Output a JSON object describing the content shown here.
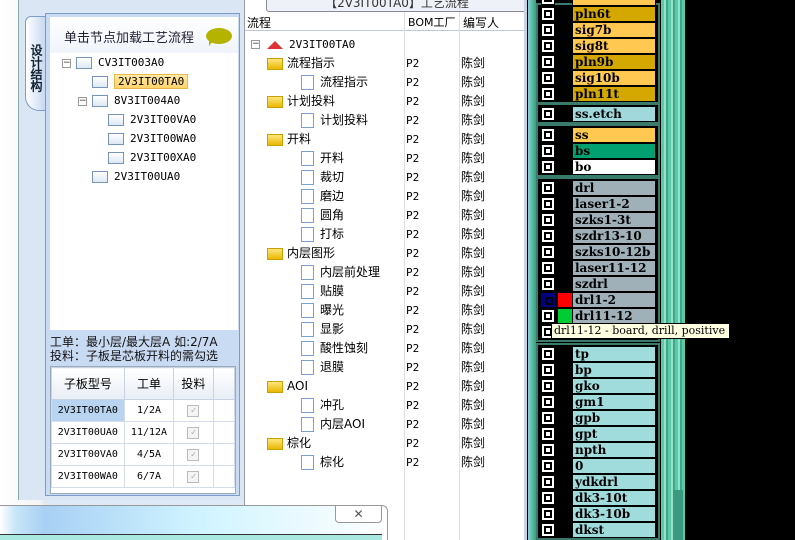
{
  "left_panel": {
    "vertical_tab": "设计结构",
    "header": "单击节点加载工艺流程",
    "tree": [
      {
        "label": "CV3IT003A0",
        "level": 0,
        "expanded": true
      },
      {
        "label": "2V3IT00TA0",
        "level": 1,
        "selected": true
      },
      {
        "label": "8V3IT004A0",
        "level": 1,
        "expanded": true
      },
      {
        "label": "2V3IT00VA0",
        "level": 2
      },
      {
        "label": "2V3IT00WA0",
        "level": 2
      },
      {
        "label": "2V3IT00XA0",
        "level": 2
      },
      {
        "label": "2V3IT00UA0",
        "level": 1
      }
    ],
    "info_line1": "工单：最小层/最大层A 如:2/7A",
    "info_line2": "投料：子板是芯板开料的需勾选",
    "grid": {
      "headers": [
        "子板型号",
        "工单",
        "投料"
      ],
      "rows": [
        {
          "model": "2V3IT00TA0",
          "order": "1/2A",
          "feed": true
        },
        {
          "model": "2V3IT00UA0",
          "order": "11/12A",
          "feed": true
        },
        {
          "model": "2V3IT00VA0",
          "order": "4/5A",
          "feed": true
        },
        {
          "model": "2V3IT00WA0",
          "order": "6/7A",
          "feed": true
        }
      ]
    }
  },
  "process_panel": {
    "title": "【2V3IT00TA0】工艺流程",
    "columns": [
      "流程",
      "BOM工厂",
      "编写人"
    ],
    "root": "2V3IT00TA0",
    "rows": [
      {
        "name": "流程指示",
        "type": "folder",
        "factory": "P2",
        "author": "陈剑"
      },
      {
        "name": "流程指示",
        "type": "step",
        "factory": "P2",
        "author": "陈剑"
      },
      {
        "name": "计划投料",
        "type": "folder",
        "factory": "P2",
        "author": "陈剑"
      },
      {
        "name": "计划投料",
        "type": "step",
        "factory": "P2",
        "author": "陈剑"
      },
      {
        "name": "开料",
        "type": "folder",
        "factory": "P2",
        "author": "陈剑"
      },
      {
        "name": "开料",
        "type": "step",
        "factory": "P2",
        "author": "陈剑"
      },
      {
        "name": "裁切",
        "type": "step",
        "factory": "P2",
        "author": "陈剑"
      },
      {
        "name": "磨边",
        "type": "step",
        "factory": "P2",
        "author": "陈剑"
      },
      {
        "name": "圆角",
        "type": "step",
        "factory": "P2",
        "author": "陈剑"
      },
      {
        "name": "打标",
        "type": "step",
        "factory": "P2",
        "author": "陈剑"
      },
      {
        "name": "内层图形",
        "type": "folder",
        "factory": "P2",
        "author": "陈剑"
      },
      {
        "name": "内层前处理",
        "type": "step",
        "factory": "P2",
        "author": "陈剑"
      },
      {
        "name": "贴膜",
        "type": "step",
        "factory": "P2",
        "author": "陈剑"
      },
      {
        "name": "曝光",
        "type": "step",
        "factory": "P2",
        "author": "陈剑"
      },
      {
        "name": "显影",
        "type": "step",
        "factory": "P2",
        "author": "陈剑"
      },
      {
        "name": "酸性蚀刻",
        "type": "step",
        "factory": "P2",
        "author": "陈剑"
      },
      {
        "name": "退膜",
        "type": "step",
        "factory": "P2",
        "author": "陈剑"
      },
      {
        "name": "AOI",
        "type": "folder",
        "factory": "P2",
        "author": "陈剑"
      },
      {
        "name": "冲孔",
        "type": "step",
        "factory": "P2",
        "author": "陈剑"
      },
      {
        "name": "内层AOI",
        "type": "step",
        "factory": "P2",
        "author": "陈剑"
      },
      {
        "name": "棕化",
        "type": "folder",
        "factory": "P2",
        "author": "陈剑"
      },
      {
        "name": "棕化",
        "type": "step",
        "factory": "P2",
        "author": "陈剑"
      }
    ]
  },
  "layers_panel": {
    "colors": {
      "signal": "#ffc850",
      "plane": "#d4a800",
      "etch": "#a0d8dc",
      "solder_mask": "#00a070",
      "white": "#ffffff",
      "drill": "#9fb0b8",
      "other": "#a0dcdc"
    },
    "groups": [
      [
        {
          "name": "pln6t",
          "color": "#d4a800"
        },
        {
          "name": "sig7b",
          "color": "#ffc850"
        },
        {
          "name": "sig8t",
          "color": "#ffc850"
        },
        {
          "name": "pln9b",
          "color": "#d4a800"
        },
        {
          "name": "sig10b",
          "color": "#ffc850"
        },
        {
          "name": "pln11t",
          "color": "#d4a800"
        }
      ],
      [
        {
          "name": "ss.etch",
          "color": "#a0d8dc"
        }
      ],
      [
        {
          "name": "ss",
          "color": "#ffc850"
        },
        {
          "name": "bs",
          "color": "#00a070"
        },
        {
          "name": "bo",
          "color": "#ffffff"
        }
      ],
      [
        {
          "name": "drl",
          "color": "#9fb0b8"
        },
        {
          "name": "laser1-2",
          "color": "#9fb0b8"
        },
        {
          "name": "szks1-3t",
          "color": "#9fb0b8"
        },
        {
          "name": "szdr13-10",
          "color": "#9fb0b8"
        },
        {
          "name": "szks10-12b",
          "color": "#9fb0b8"
        },
        {
          "name": "laser11-12",
          "color": "#9fb0b8"
        },
        {
          "name": "szdrl",
          "color": "#9fb0b8"
        },
        {
          "name": "drl1-2",
          "color": "#9fb0b8",
          "active": true,
          "swatch": "#ff0000"
        },
        {
          "name": "drl11-12",
          "color": "#9fb0b8",
          "swatch": "#00cc33"
        },
        {
          "name": "",
          "color": "#9fb0b8"
        }
      ],
      [
        {
          "name": "tp",
          "color": "#a0dcdc"
        },
        {
          "name": "bp",
          "color": "#a0dcdc"
        },
        {
          "name": "gko",
          "color": "#a0dcdc"
        },
        {
          "name": "gm1",
          "color": "#a0dcdc"
        },
        {
          "name": "gpb",
          "color": "#a0dcdc"
        },
        {
          "name": "gpt",
          "color": "#a0dcdc"
        },
        {
          "name": "npth",
          "color": "#a0dcdc"
        },
        {
          "name": "0",
          "color": "#a0dcdc"
        },
        {
          "name": "ydkdrl",
          "color": "#a0dcdc"
        },
        {
          "name": "dk3-10t",
          "color": "#a0dcdc"
        },
        {
          "name": "dk3-10b",
          "color": "#a0dcdc"
        },
        {
          "name": "dkst",
          "color": "#a0dcdc"
        }
      ]
    ],
    "tooltip": "drl11-12 - board, drill, positive"
  },
  "dialog": {
    "close_label": "✕"
  }
}
